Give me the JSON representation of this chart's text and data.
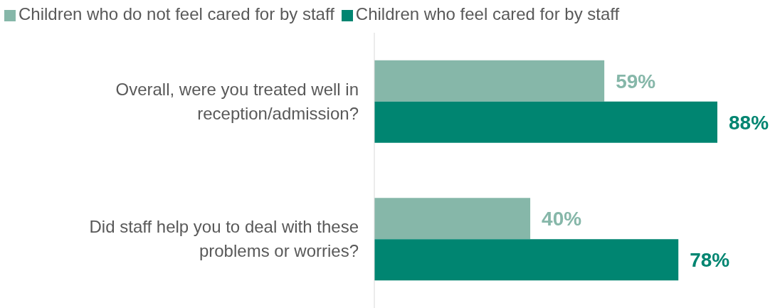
{
  "chart_data": {
    "type": "bar",
    "orientation": "horizontal",
    "categories": [
      "Overall, were you treated well in reception/admission?",
      "Did staff help you to deal with these problems or worries?"
    ],
    "series": [
      {
        "name": "Children who do not feel cared for by staff",
        "color": "#86b7a9",
        "values": [
          59,
          40
        ],
        "value_labels": [
          "59%",
          "40%"
        ]
      },
      {
        "name": "Children who feel cared for by staff",
        "color": "#008571",
        "values": [
          88,
          78
        ],
        "value_labels": [
          "88%",
          "78%"
        ]
      }
    ],
    "legend": "top left"
  }
}
